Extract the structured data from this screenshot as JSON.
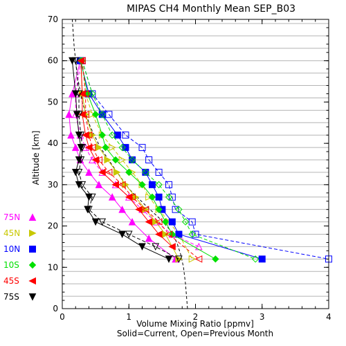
{
  "chart_data": {
    "type": "line",
    "title": "MIPAS CH4 Monthly Mean SEP_B03",
    "xlabel": "Volume Mixing Ratio [ppmv]",
    "xlabel2": "Solid=Current, Open=Previous Month",
    "ylabel": "Altitude [km]",
    "xlim": [
      0,
      4
    ],
    "ylim": [
      0,
      70
    ],
    "xticks": [
      "0",
      "1",
      "2",
      "3",
      "4"
    ],
    "yticks": [
      "0",
      "10",
      "20",
      "30",
      "40",
      "50",
      "60",
      "70"
    ],
    "grid": "horizontal lines every 3 km",
    "legend_position": "left-bottom",
    "reference_profile": {
      "style": "dashed",
      "color": "#000000",
      "x": [
        1.88,
        1.85,
        1.82,
        1.78,
        1.72,
        1.62,
        1.45,
        1.25,
        1.0,
        0.78,
        0.57,
        0.42,
        0.3,
        0.23,
        0.18,
        0.15
      ],
      "y": [
        0,
        6,
        10,
        13,
        16,
        19,
        22,
        25,
        29,
        34,
        39,
        44,
        50,
        56,
        63,
        70
      ]
    },
    "series": [
      {
        "name": "75N",
        "color": "#ff00ff",
        "marker": "triangle-up",
        "current": {
          "x": [
            0.27,
            0.15,
            0.1,
            0.13,
            0.2,
            0.27,
            0.4,
            0.55,
            0.75,
            0.9,
            1.05,
            1.3,
            1.7
          ],
          "y": [
            60,
            52,
            47,
            42,
            39,
            36,
            33,
            30,
            27,
            24,
            21,
            17,
            12
          ]
        },
        "previous": {
          "x": [
            0.28,
            0.2,
            0.2,
            0.27,
            0.35,
            0.45,
            0.6,
            0.8,
            1.0,
            1.2,
            1.4,
            1.65,
            2.05
          ],
          "y": [
            60,
            52,
            47,
            42,
            39,
            36,
            33,
            30,
            27,
            24,
            21,
            18,
            15
          ]
        }
      },
      {
        "name": "45N",
        "color": "#c8c800",
        "marker": "triangle-right",
        "current": {
          "x": [
            0.28,
            0.3,
            0.35,
            0.45,
            0.55,
            0.68,
            0.82,
            0.95,
            1.1,
            1.25,
            1.4,
            1.55,
            1.75
          ],
          "y": [
            60,
            52,
            47,
            42,
            39,
            36,
            33,
            30,
            27,
            24,
            21,
            18,
            12
          ]
        },
        "previous": {
          "x": [
            0.3,
            0.35,
            0.45,
            0.6,
            0.75,
            0.9,
            1.05,
            1.2,
            1.3,
            1.45,
            1.6,
            1.75,
            1.95
          ],
          "y": [
            60,
            52,
            47,
            42,
            39,
            36,
            33,
            30,
            27,
            24,
            21,
            18,
            12
          ]
        }
      },
      {
        "name": "10N",
        "color": "#0000ff",
        "marker": "square",
        "current": {
          "x": [
            0.27,
            0.4,
            0.6,
            0.83,
            0.95,
            1.05,
            1.25,
            1.35,
            1.45,
            1.5,
            1.65,
            1.75,
            3.0
          ],
          "y": [
            60,
            52,
            47,
            42,
            39,
            36,
            33,
            30,
            27,
            24,
            21,
            18,
            12
          ]
        },
        "previous": {
          "x": [
            0.3,
            0.45,
            0.7,
            0.95,
            1.2,
            1.3,
            1.45,
            1.6,
            1.65,
            1.7,
            1.95,
            2.0,
            4.0
          ],
          "y": [
            60,
            52,
            47,
            42,
            39,
            36,
            33,
            30,
            27,
            24,
            21,
            18,
            12
          ]
        }
      },
      {
        "name": "10S",
        "color": "#00e000",
        "marker": "diamond",
        "current": {
          "x": [
            0.28,
            0.38,
            0.5,
            0.6,
            0.65,
            0.8,
            1.0,
            1.2,
            1.35,
            1.45,
            1.55,
            1.65,
            2.3
          ],
          "y": [
            60,
            52,
            47,
            42,
            39,
            36,
            33,
            30,
            27,
            24,
            21,
            18,
            12
          ]
        },
        "previous": {
          "x": [
            0.3,
            0.45,
            0.6,
            0.75,
            0.9,
            1.05,
            1.25,
            1.45,
            1.6,
            1.75,
            1.85,
            1.95,
            2.9
          ],
          "y": [
            60,
            52,
            47,
            42,
            39,
            36,
            33,
            30,
            27,
            24,
            21,
            18,
            12
          ]
        }
      },
      {
        "name": "45S",
        "color": "#ff0000",
        "marker": "triangle-left",
        "current": {
          "x": [
            0.28,
            0.3,
            0.3,
            0.35,
            0.4,
            0.5,
            0.6,
            0.8,
            1.0,
            1.15,
            1.3,
            1.45,
            1.65
          ],
          "y": [
            60,
            52,
            47,
            42,
            39,
            36,
            33,
            30,
            27,
            24,
            21,
            18,
            15
          ]
        },
        "previous": {
          "x": [
            0.3,
            0.35,
            0.35,
            0.4,
            0.45,
            0.55,
            0.7,
            0.9,
            1.05,
            1.25,
            1.45,
            1.6,
            2.05
          ],
          "y": [
            60,
            52,
            47,
            42,
            39,
            36,
            33,
            30,
            27,
            24,
            21,
            18,
            12
          ]
        }
      },
      {
        "name": "75S",
        "color": "#000000",
        "marker": "triangle-down",
        "current": {
          "x": [
            0.15,
            0.2,
            0.22,
            0.25,
            0.28,
            0.25,
            0.2,
            0.25,
            0.4,
            0.38,
            0.5,
            0.9,
            1.2,
            1.6
          ],
          "y": [
            60,
            52,
            47,
            42,
            39,
            36,
            33,
            30,
            27,
            24,
            21,
            18,
            15,
            12
          ]
        },
        "previous": {
          "x": [
            0.2,
            0.25,
            0.25,
            0.28,
            0.3,
            0.28,
            0.25,
            0.3,
            0.45,
            0.4,
            0.6,
            1.0,
            1.4,
            1.75
          ],
          "y": [
            60,
            52,
            47,
            42,
            39,
            36,
            33,
            30,
            27,
            24,
            21,
            18,
            15,
            12
          ]
        }
      }
    ]
  }
}
